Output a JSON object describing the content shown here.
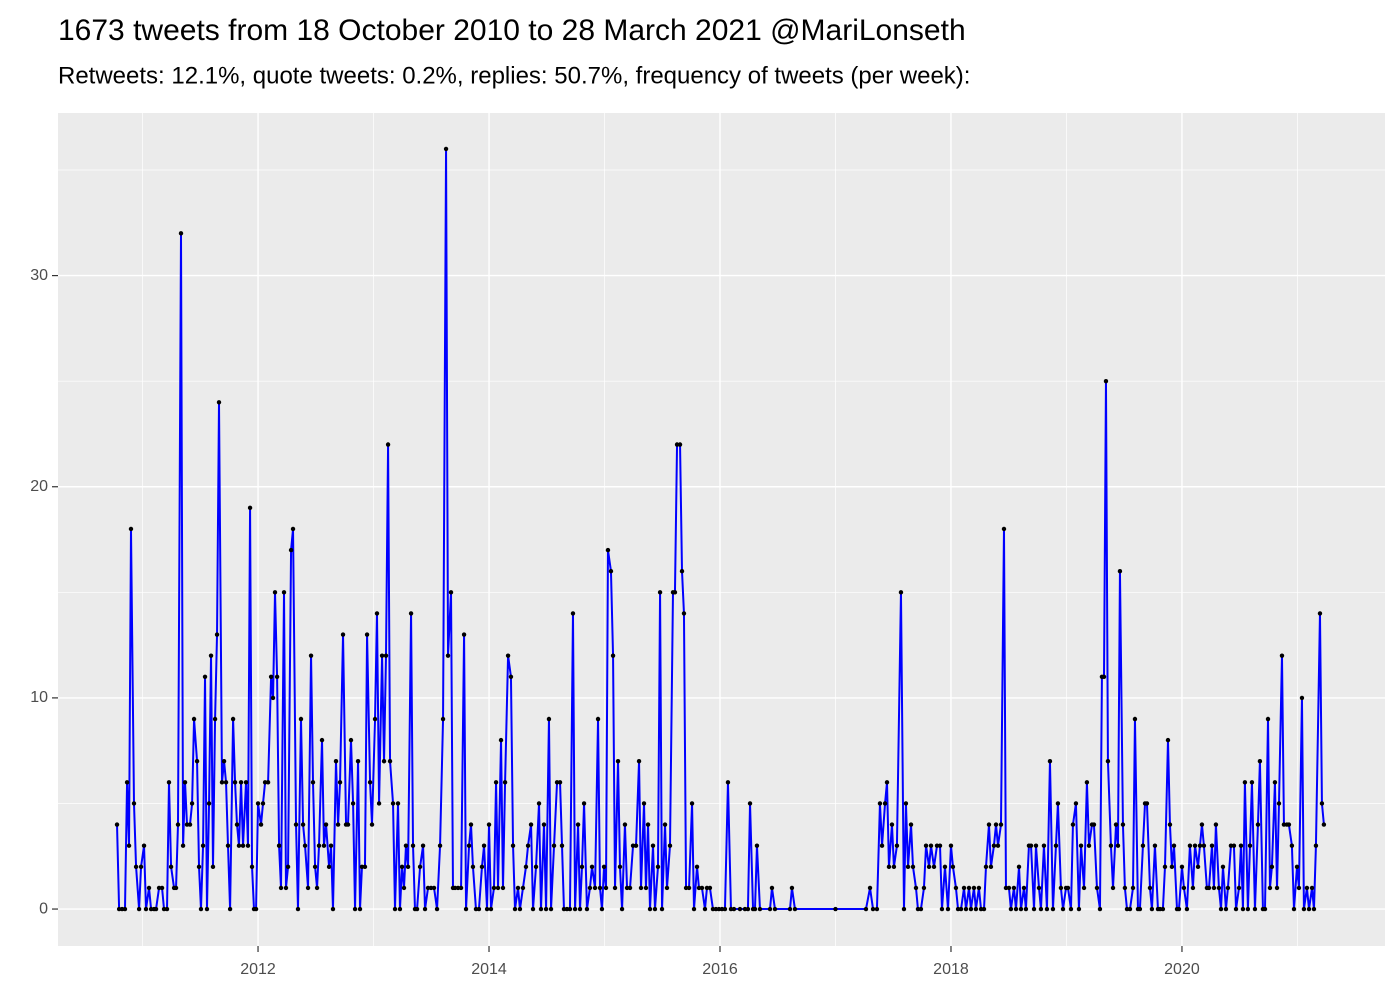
{
  "chart_data": {
    "type": "line",
    "title": "1673 tweets from 18 October 2010 to 28 March 2021 @MariLonseth",
    "subtitle": "Retweets: 12.1%, quote tweets: 0.2%, replies: 50.7%, frequency of tweets (per week):",
    "x": [
      2010.779,
      2010.797,
      2010.823,
      2010.848,
      2010.866,
      2010.883,
      2010.9,
      2010.926,
      2010.944,
      2010.97,
      2010.987,
      2011.013,
      2011.03,
      2011.056,
      2011.074,
      2011.1,
      2011.117,
      2011.143,
      2011.169,
      2011.186,
      2011.212,
      2011.229,
      2011.247,
      2011.273,
      2011.29,
      2011.307,
      2011.333,
      2011.351,
      2011.368,
      2011.385,
      2011.411,
      2011.429,
      2011.446,
      2011.472,
      2011.489,
      2011.506,
      2011.524,
      2011.541,
      2011.558,
      2011.576,
      2011.593,
      2011.61,
      2011.628,
      2011.645,
      2011.662,
      2011.688,
      2011.706,
      2011.723,
      2011.74,
      2011.758,
      2011.784,
      2011.801,
      2011.818,
      2011.835,
      2011.853,
      2011.87,
      2011.896,
      2011.913,
      2011.931,
      2011.948,
      2011.965,
      2011.983,
      2012.0,
      2012.026,
      2012.043,
      2012.061,
      2012.087,
      2012.113,
      2012.13,
      2012.147,
      2012.165,
      2012.182,
      2012.199,
      2012.225,
      2012.242,
      2012.26,
      2012.286,
      2012.303,
      2012.329,
      2012.346,
      2012.372,
      2012.39,
      2012.407,
      2012.433,
      2012.459,
      2012.476,
      2012.494,
      2012.511,
      2012.528,
      2012.554,
      2012.571,
      2012.589,
      2012.615,
      2012.632,
      2012.649,
      2012.675,
      2012.693,
      2012.71,
      2012.736,
      2012.762,
      2012.779,
      2012.805,
      2012.823,
      2012.84,
      2012.866,
      2012.883,
      2012.9,
      2012.926,
      2012.944,
      2012.97,
      2012.987,
      2013.013,
      2013.03,
      2013.048,
      2013.074,
      2013.091,
      2013.108,
      2013.126,
      2013.143,
      2013.169,
      2013.186,
      2013.212,
      2013.229,
      2013.247,
      2013.264,
      2013.281,
      2013.299,
      2013.325,
      2013.342,
      2013.359,
      2013.377,
      2013.403,
      2013.429,
      2013.446,
      2013.472,
      2013.498,
      2013.524,
      2013.55,
      2013.576,
      2013.602,
      2013.628,
      2013.645,
      2013.671,
      2013.688,
      2013.706,
      2013.732,
      2013.758,
      2013.784,
      2013.801,
      2013.827,
      2013.844,
      2013.861,
      2013.887,
      2013.913,
      2013.939,
      2013.957,
      2013.983,
      2014.0,
      2014.017,
      2014.043,
      2014.061,
      2014.078,
      2014.104,
      2014.121,
      2014.139,
      2014.165,
      2014.19,
      2014.208,
      2014.225,
      2014.251,
      2014.268,
      2014.294,
      2014.32,
      2014.338,
      2014.364,
      2014.381,
      2014.407,
      2014.433,
      2014.45,
      2014.476,
      2014.494,
      2014.519,
      2014.537,
      2014.563,
      2014.589,
      2014.615,
      2014.632,
      2014.649,
      2014.675,
      2014.701,
      2014.727,
      2014.745,
      2014.771,
      2014.788,
      2014.805,
      2014.823,
      2014.848,
      2014.874,
      2014.892,
      2014.918,
      2014.944,
      2014.961,
      2014.978,
      2014.996,
      2015.013,
      2015.03,
      2015.056,
      2015.074,
      2015.091,
      2015.117,
      2015.134,
      2015.152,
      2015.177,
      2015.195,
      2015.221,
      2015.247,
      2015.273,
      2015.299,
      2015.316,
      2015.342,
      2015.359,
      2015.377,
      2015.394,
      2015.42,
      2015.437,
      2015.463,
      2015.481,
      2015.498,
      2015.524,
      2015.541,
      2015.567,
      2015.593,
      2015.61,
      2015.628,
      2015.654,
      2015.671,
      2015.688,
      2015.706,
      2015.732,
      2015.758,
      2015.775,
      2015.801,
      2015.818,
      2015.844,
      2015.87,
      2015.887,
      2015.913,
      2015.939,
      2015.965,
      2015.991,
      2016.017,
      2016.043,
      2016.069,
      2016.095,
      2016.121,
      2016.173,
      2016.216,
      2016.242,
      2016.26,
      2016.286,
      2016.303,
      2016.32,
      2016.346,
      2016.433,
      2016.45,
      2016.476,
      2016.606,
      2016.623,
      2016.649,
      2017.0,
      2017.264,
      2017.299,
      2017.325,
      2017.359,
      2017.385,
      2017.403,
      2017.429,
      2017.446,
      2017.463,
      2017.489,
      2017.506,
      2017.532,
      2017.567,
      2017.593,
      2017.61,
      2017.628,
      2017.654,
      2017.671,
      2017.697,
      2017.714,
      2017.74,
      2017.766,
      2017.784,
      2017.81,
      2017.827,
      2017.853,
      2017.879,
      2017.905,
      2017.922,
      2017.948,
      2017.974,
      2018.0,
      2018.017,
      2018.043,
      2018.061,
      2018.087,
      2018.113,
      2018.13,
      2018.156,
      2018.173,
      2018.199,
      2018.216,
      2018.242,
      2018.26,
      2018.286,
      2018.303,
      2018.329,
      2018.346,
      2018.372,
      2018.39,
      2018.407,
      2018.433,
      2018.459,
      2018.476,
      2018.502,
      2018.519,
      2018.545,
      2018.563,
      2018.589,
      2018.606,
      2018.632,
      2018.649,
      2018.675,
      2018.693,
      2018.719,
      2018.736,
      2018.762,
      2018.779,
      2018.805,
      2018.831,
      2018.857,
      2018.883,
      2018.909,
      2018.926,
      2018.952,
      2018.97,
      2018.996,
      2019.013,
      2019.039,
      2019.056,
      2019.082,
      2019.108,
      2019.126,
      2019.152,
      2019.177,
      2019.195,
      2019.221,
      2019.238,
      2019.264,
      2019.29,
      2019.307,
      2019.325,
      2019.342,
      2019.359,
      2019.385,
      2019.403,
      2019.429,
      2019.446,
      2019.463,
      2019.489,
      2019.506,
      2019.524,
      2019.55,
      2019.576,
      2019.593,
      2019.619,
      2019.636,
      2019.662,
      2019.68,
      2019.697,
      2019.723,
      2019.74,
      2019.766,
      2019.792,
      2019.81,
      2019.835,
      2019.853,
      2019.879,
      2019.896,
      2019.913,
      2019.931,
      2019.957,
      2019.974,
      2020.0,
      2020.017,
      2020.043,
      2020.069,
      2020.095,
      2020.113,
      2020.139,
      2020.156,
      2020.173,
      2020.19,
      2020.216,
      2020.234,
      2020.26,
      2020.277,
      2020.294,
      2020.32,
      2020.338,
      2020.355,
      2020.381,
      2020.398,
      2020.424,
      2020.45,
      2020.468,
      2020.494,
      2020.511,
      2020.528,
      2020.545,
      2020.571,
      2020.589,
      2020.606,
      2020.632,
      2020.658,
      2020.675,
      2020.701,
      2020.719,
      2020.745,
      2020.762,
      2020.779,
      2020.805,
      2020.823,
      2020.84,
      2020.866,
      2020.883,
      2020.909,
      2020.926,
      2020.952,
      2020.97,
      2020.996,
      2021.013,
      2021.039,
      2021.056,
      2021.082,
      2021.1,
      2021.126,
      2021.143,
      2021.16,
      2021.195,
      2021.212,
      2021.229
    ],
    "values": [
      4,
      0,
      0,
      0,
      6,
      3,
      18,
      5,
      2,
      0,
      2,
      3,
      0,
      1,
      0,
      0,
      0,
      1,
      1,
      0,
      0,
      6,
      2,
      1,
      1,
      4,
      32,
      3,
      6,
      4,
      4,
      5,
      9,
      7,
      2,
      0,
      3,
      11,
      0,
      5,
      12,
      2,
      9,
      13,
      24,
      6,
      7,
      6,
      3,
      0,
      9,
      6,
      4,
      3,
      6,
      3,
      6,
      3,
      19,
      2,
      0,
      0,
      5,
      4,
      5,
      6,
      6,
      11,
      10,
      15,
      11,
      3,
      1,
      15,
      1,
      2,
      17,
      18,
      4,
      0,
      9,
      4,
      3,
      1,
      12,
      6,
      2,
      1,
      3,
      8,
      3,
      4,
      2,
      3,
      0,
      7,
      4,
      6,
      13,
      4,
      4,
      8,
      5,
      0,
      7,
      0,
      2,
      2,
      13,
      6,
      4,
      9,
      14,
      5,
      12,
      7,
      12,
      22,
      7,
      5,
      0,
      5,
      0,
      2,
      1,
      3,
      2,
      14,
      3,
      0,
      0,
      2,
      3,
      0,
      1,
      1,
      1,
      0,
      3,
      9,
      36,
      12,
      15,
      1,
      1,
      1,
      1,
      13,
      0,
      3,
      4,
      2,
      0,
      0,
      2,
      3,
      0,
      4,
      0,
      1,
      6,
      1,
      8,
      1,
      6,
      12,
      11,
      3,
      0,
      1,
      0,
      1,
      2,
      3,
      4,
      0,
      2,
      5,
      0,
      4,
      0,
      9,
      0,
      3,
      6,
      6,
      3,
      0,
      0,
      0,
      14,
      0,
      4,
      0,
      2,
      5,
      0,
      1,
      2,
      1,
      9,
      1,
      0,
      2,
      1,
      17,
      16,
      12,
      1,
      7,
      2,
      0,
      4,
      1,
      1,
      3,
      3,
      7,
      1,
      5,
      1,
      4,
      0,
      3,
      0,
      2,
      15,
      0,
      4,
      1,
      3,
      15,
      15,
      22,
      22,
      16,
      14,
      1,
      1,
      5,
      0,
      2,
      1,
      1,
      0,
      1,
      1,
      0,
      0,
      0,
      0,
      0,
      6,
      0,
      0,
      0,
      0,
      0,
      5,
      0,
      0,
      3,
      0,
      0,
      1,
      0,
      0,
      1,
      0,
      0,
      0,
      1,
      0,
      0,
      5,
      3,
      5,
      6,
      2,
      4,
      2,
      3,
      15,
      0,
      5,
      2,
      4,
      2,
      1,
      0,
      0,
      1,
      3,
      2,
      3,
      2,
      3,
      3,
      0,
      2,
      0,
      3,
      2,
      1,
      0,
      0,
      1,
      0,
      1,
      0,
      1,
      0,
      1,
      0,
      0,
      2,
      4,
      2,
      3,
      4,
      3,
      4,
      18,
      1,
      1,
      0,
      1,
      0,
      2,
      0,
      1,
      0,
      3,
      3,
      0,
      3,
      1,
      0,
      3,
      0,
      7,
      0,
      3,
      5,
      1,
      0,
      1,
      1,
      0,
      4,
      5,
      0,
      3,
      1,
      6,
      3,
      4,
      4,
      1,
      0,
      11,
      11,
      25,
      7,
      3,
      1,
      4,
      3,
      16,
      4,
      1,
      0,
      0,
      1,
      9,
      0,
      0,
      3,
      5,
      5,
      1,
      0,
      3,
      0,
      0,
      0,
      2,
      8,
      4,
      2,
      3,
      0,
      0,
      2,
      1,
      0,
      3,
      1,
      3,
      2,
      3,
      4,
      3,
      1,
      1,
      3,
      1,
      4,
      1,
      0,
      2,
      0,
      1,
      3,
      3,
      0,
      1,
      3,
      0,
      6,
      0,
      3,
      6,
      0,
      4,
      7,
      0,
      0,
      9,
      1,
      2,
      6,
      1,
      5,
      12,
      4,
      4,
      4,
      3,
      0,
      2,
      1,
      10,
      0,
      1,
      0,
      1,
      0,
      3,
      14,
      5,
      4
    ],
    "color": "#0000ff",
    "marker_color": "#000000",
    "xlim": [
      2010.268,
      2021.758
    ],
    "ylim": [
      -1.75,
      37.7
    ],
    "xticks": [
      2012,
      2014,
      2016,
      2018,
      2020
    ],
    "yticks": [
      0,
      10,
      20,
      30
    ],
    "grid": true
  }
}
